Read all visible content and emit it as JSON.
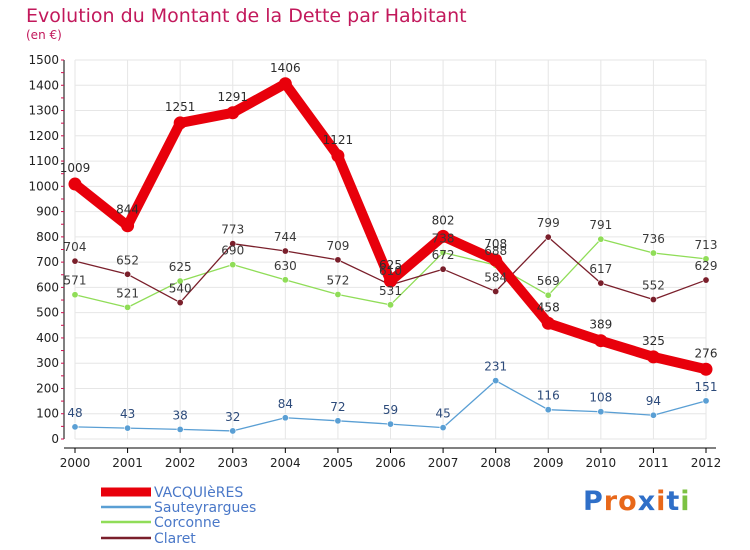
{
  "title": "Evolution du Montant de la Dette par Habitant",
  "subtitle": "(en €)",
  "logo": {
    "text": "Proxiti"
  },
  "colors": {
    "title": "#c2185b",
    "axis": "#000000",
    "grid": "#e6e6e6"
  },
  "chart_data": {
    "type": "line",
    "title": "Evolution du Montant de la Dette par Habitant",
    "ylabel": "(en €)",
    "xlabel": "",
    "x": [
      "2000",
      "2001",
      "2002",
      "2003",
      "2004",
      "2005",
      "2006",
      "2007",
      "2008",
      "2009",
      "2010",
      "2011",
      "2012"
    ],
    "ylim": [
      0,
      1500
    ],
    "yticks": [
      0,
      100,
      200,
      300,
      400,
      500,
      600,
      700,
      800,
      900,
      1000,
      1100,
      1200,
      1300,
      1400,
      1500
    ],
    "grid": true,
    "legend_position": "bottom-left",
    "series": [
      {
        "name": "VACQUIèRES",
        "color": "#e8000b",
        "labelColor": "#2c2c2c",
        "marker": "#e8000b",
        "values": [
          1009,
          844,
          1251,
          1291,
          1406,
          1121,
          625,
          802,
          708,
          458,
          389,
          325,
          276
        ],
        "labels": [
          "1009",
          "844",
          "1251",
          "1291",
          "1406",
          "1121",
          "625",
          "802",
          "708",
          "458",
          "389",
          "325",
          "276"
        ]
      },
      {
        "name": "Sauteyrargues",
        "color": "#5a9fd4",
        "labelColor": "#2c4a7a",
        "marker": "#5a9fd4",
        "values": [
          48,
          43,
          38,
          32,
          84,
          72,
          59,
          45,
          231,
          116,
          108,
          94,
          151
        ],
        "labels": [
          "48",
          "43",
          "38",
          "32",
          "84",
          "72",
          "59",
          "45",
          "231",
          "116",
          "108",
          "94",
          "151"
        ]
      },
      {
        "name": "Corconne",
        "color": "#90dd58",
        "labelColor": "#3a3a3a",
        "marker": "#90dd58",
        "values": [
          571,
          521,
          625,
          690,
          630,
          572,
          531,
          738,
          688,
          569,
          791,
          736,
          713
        ],
        "labels": [
          "571",
          "521",
          "625",
          "690",
          "630",
          "572",
          "531",
          "738",
          "688",
          "569",
          "791",
          "736",
          "713"
        ]
      },
      {
        "name": "Claret",
        "color": "#7a1f2b",
        "labelColor": "#3a3a3a",
        "marker": "#7a1f2b",
        "values": [
          704,
          652,
          540,
          773,
          744,
          709,
          610,
          672,
          584,
          799,
          617,
          552,
          629
        ],
        "labels": [
          "704",
          "652",
          "540",
          "773",
          "744",
          "709",
          "610",
          "672",
          "584",
          "799",
          "617",
          "552",
          "629"
        ]
      }
    ]
  }
}
